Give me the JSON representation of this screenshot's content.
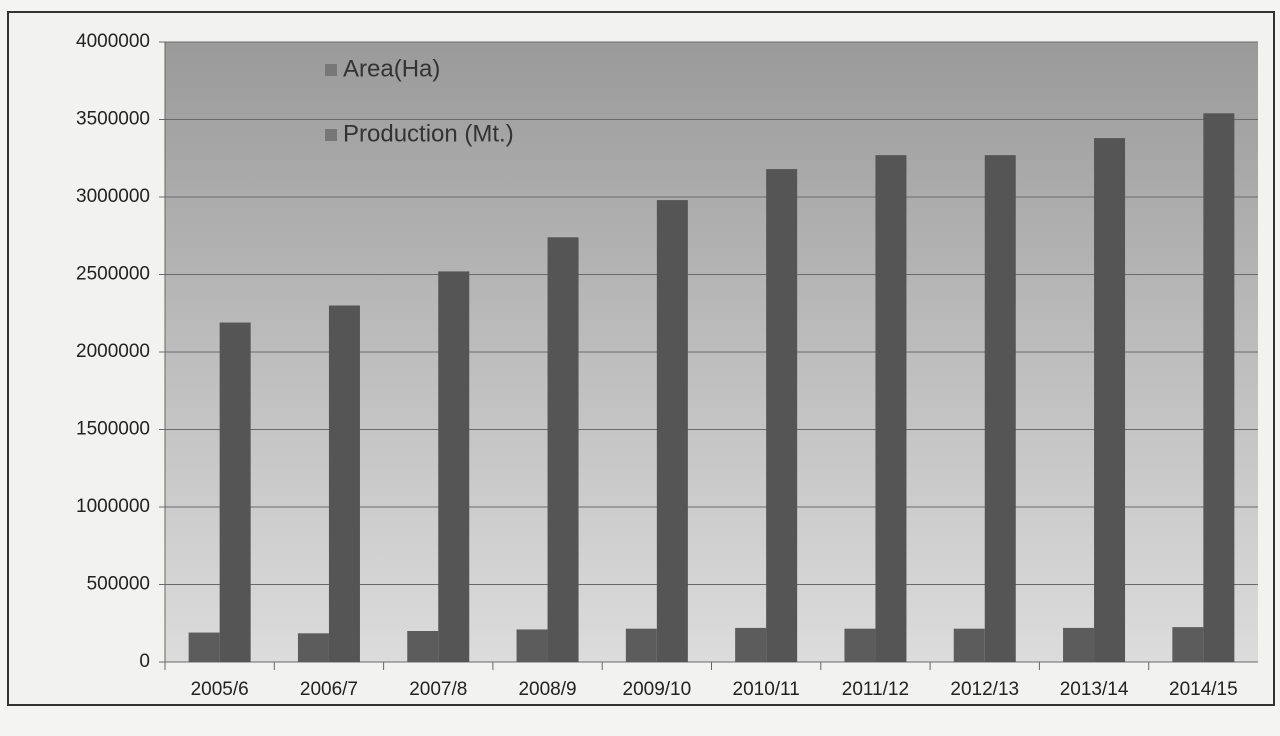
{
  "chart_data": {
    "type": "bar",
    "categories": [
      "2005/6",
      "2006/7",
      "2007/8",
      "2008/9",
      "2009/10",
      "2010/11",
      "2011/12",
      "2012/13",
      "2013/14",
      "2014/15"
    ],
    "series": [
      {
        "name": "Area(Ha)",
        "color": "#5c5c5c",
        "values": [
          190000,
          185000,
          200000,
          210000,
          215000,
          220000,
          215000,
          215000,
          220000,
          225000
        ]
      },
      {
        "name": "Production (Mt.)",
        "color": "#555555",
        "values": [
          2190000,
          2300000,
          2520000,
          2740000,
          2980000,
          3180000,
          3270000,
          3270000,
          3380000,
          3540000
        ]
      }
    ],
    "ylim": [
      0,
      4000000
    ],
    "yticks": [
      0,
      500000,
      1000000,
      1500000,
      2000000,
      2500000,
      3000000,
      3500000,
      4000000
    ],
    "grid": true,
    "legend": "top-left"
  }
}
